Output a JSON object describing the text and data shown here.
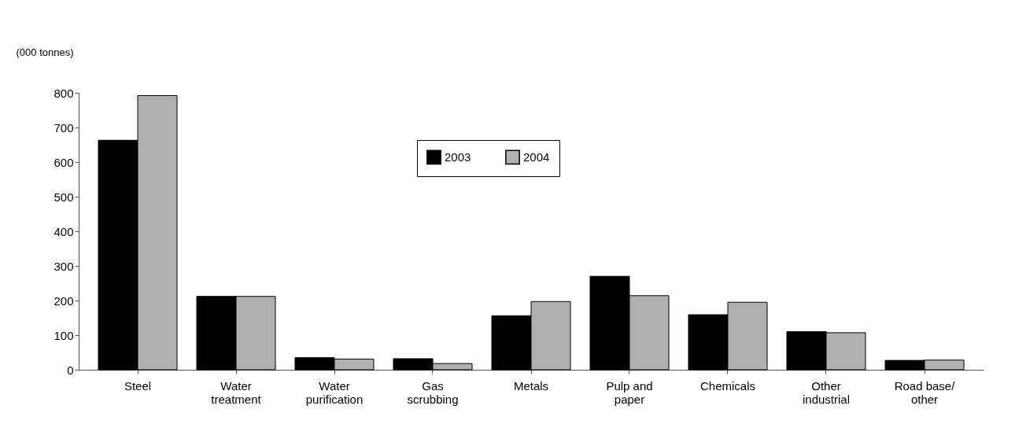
{
  "chart_data": {
    "type": "bar",
    "ylabel": "(000  tonnes)",
    "categories": [
      "Steel",
      "Water\ntreatment",
      "Water\npurification",
      "Gas\nscrubbing",
      "Metals",
      "Pulp and\npaper",
      "Chemicals",
      "Other\nindustrial",
      "Road base/\nother"
    ],
    "series": [
      {
        "name": "2003",
        "color": "#000000",
        "values": [
          663,
          212,
          35,
          32,
          156,
          270,
          159,
          110,
          27
        ]
      },
      {
        "name": "2004",
        "color": "#b0b0b0",
        "values": [
          792,
          212,
          31,
          18,
          197,
          214,
          195,
          107,
          28
        ]
      }
    ],
    "ylim": [
      0,
      800
    ],
    "yticks": [
      0,
      100,
      200,
      300,
      400,
      500,
      600,
      700,
      800
    ],
    "grid": false,
    "legend": "top"
  }
}
